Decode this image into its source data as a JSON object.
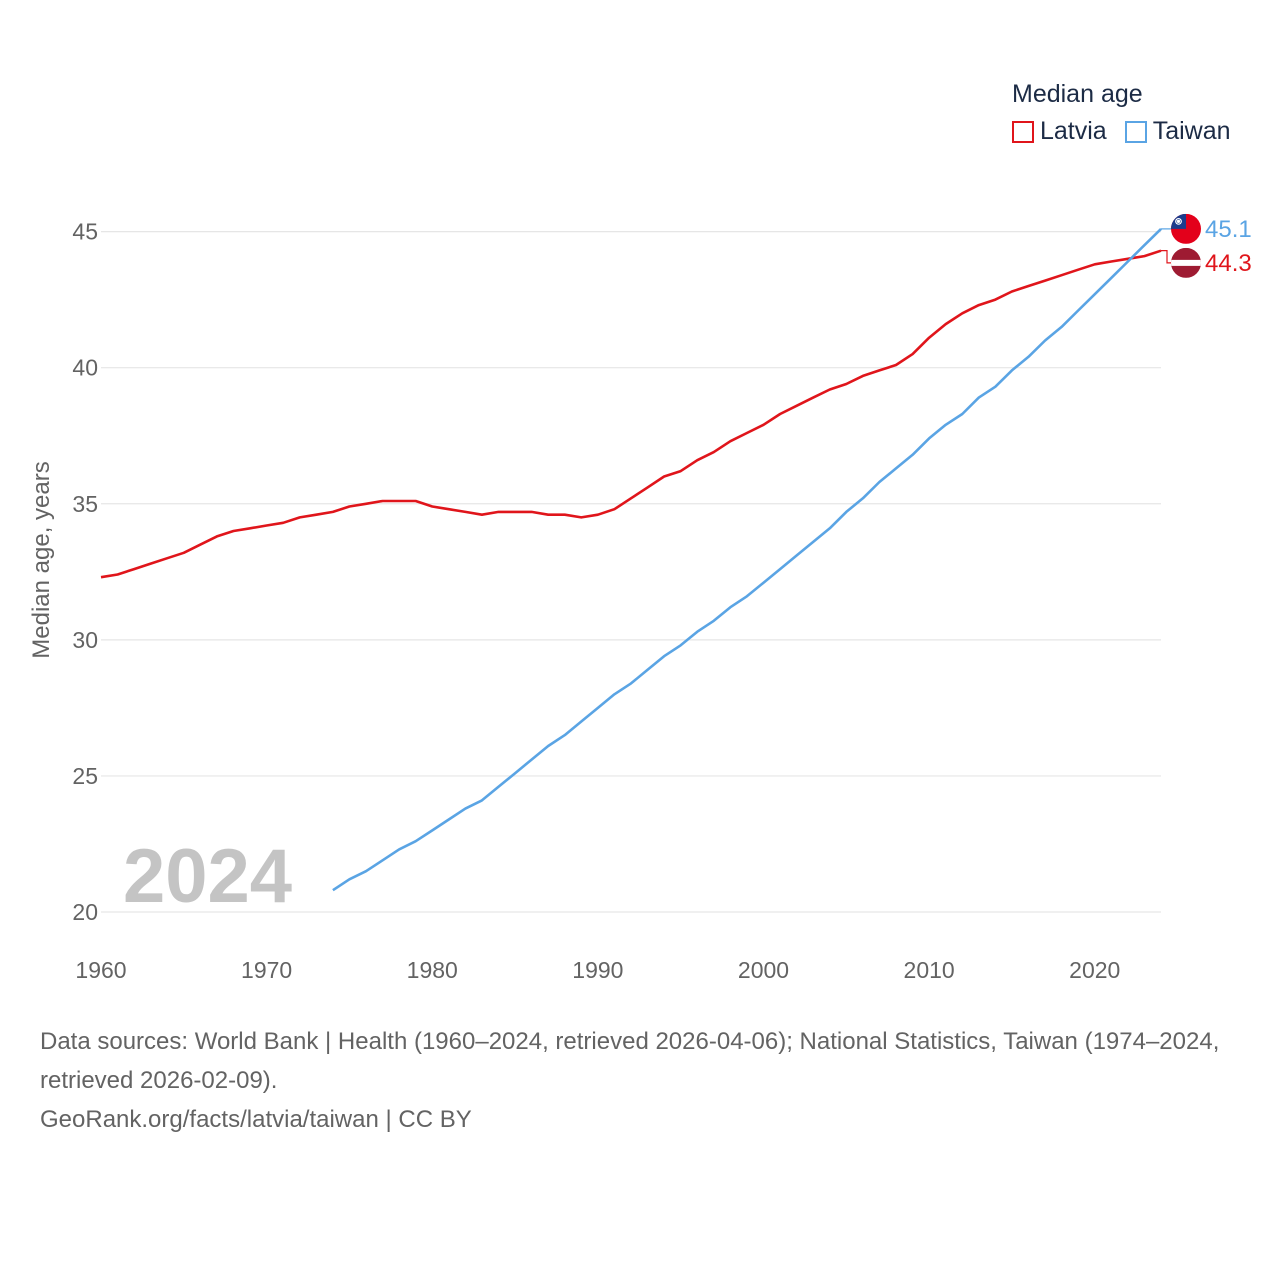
{
  "chart_data": {
    "type": "line",
    "title": "Median age",
    "ylabel": "Median age, years",
    "xlabel": "",
    "year_label": "2024",
    "xlim": [
      1960,
      2024
    ],
    "ylim": [
      20,
      45.5
    ],
    "x_ticks": [
      1960,
      1970,
      1980,
      1990,
      2000,
      2010,
      2020
    ],
    "y_ticks": [
      20,
      25,
      30,
      35,
      40,
      45
    ],
    "grid": true,
    "legend_position": "top-right",
    "series": [
      {
        "name": "Latvia",
        "color": "#e0151b",
        "end_label": "44.3",
        "x": [
          1960,
          1961,
          1962,
          1963,
          1964,
          1965,
          1966,
          1967,
          1968,
          1969,
          1970,
          1971,
          1972,
          1973,
          1974,
          1975,
          1976,
          1977,
          1978,
          1979,
          1980,
          1981,
          1982,
          1983,
          1984,
          1985,
          1986,
          1987,
          1988,
          1989,
          1990,
          1991,
          1992,
          1993,
          1994,
          1995,
          1996,
          1997,
          1998,
          1999,
          2000,
          2001,
          2002,
          2003,
          2004,
          2005,
          2006,
          2007,
          2008,
          2009,
          2010,
          2011,
          2012,
          2013,
          2014,
          2015,
          2016,
          2017,
          2018,
          2019,
          2020,
          2021,
          2022,
          2023,
          2024
        ],
        "values": [
          32.3,
          32.4,
          32.6,
          32.8,
          33.0,
          33.2,
          33.5,
          33.8,
          34.0,
          34.1,
          34.2,
          34.3,
          34.5,
          34.6,
          34.7,
          34.9,
          35.0,
          35.1,
          35.1,
          35.1,
          34.9,
          34.8,
          34.7,
          34.6,
          34.7,
          34.7,
          34.7,
          34.6,
          34.6,
          34.5,
          34.6,
          34.8,
          35.2,
          35.6,
          36.0,
          36.2,
          36.6,
          36.9,
          37.3,
          37.6,
          37.9,
          38.3,
          38.6,
          38.9,
          39.2,
          39.4,
          39.7,
          39.9,
          40.1,
          40.5,
          41.1,
          41.6,
          42.0,
          42.3,
          42.5,
          42.8,
          43.0,
          43.2,
          43.4,
          43.6,
          43.8,
          43.9,
          44.0,
          44.1,
          44.3
        ]
      },
      {
        "name": "Taiwan",
        "color": "#5aa4e4",
        "end_label": "45.1",
        "x": [
          1974,
          1975,
          1976,
          1977,
          1978,
          1979,
          1980,
          1981,
          1982,
          1983,
          1984,
          1985,
          1986,
          1987,
          1988,
          1989,
          1990,
          1991,
          1992,
          1993,
          1994,
          1995,
          1996,
          1997,
          1998,
          1999,
          2000,
          2001,
          2002,
          2003,
          2004,
          2005,
          2006,
          2007,
          2008,
          2009,
          2010,
          2011,
          2012,
          2013,
          2014,
          2015,
          2016,
          2017,
          2018,
          2019,
          2020,
          2021,
          2022,
          2023,
          2024
        ],
        "values": [
          20.8,
          21.2,
          21.5,
          21.9,
          22.3,
          22.6,
          23.0,
          23.4,
          23.8,
          24.1,
          24.6,
          25.1,
          25.6,
          26.1,
          26.5,
          27.0,
          27.5,
          28.0,
          28.4,
          28.9,
          29.4,
          29.8,
          30.3,
          30.7,
          31.2,
          31.6,
          32.1,
          32.6,
          33.1,
          33.6,
          34.1,
          34.7,
          35.2,
          35.8,
          36.3,
          36.8,
          37.4,
          37.9,
          38.3,
          38.9,
          39.3,
          39.9,
          40.4,
          41.0,
          41.5,
          42.1,
          42.7,
          43.3,
          43.9,
          44.5,
          45.1
        ]
      }
    ]
  },
  "legend": {
    "title": "Median age",
    "items": [
      "Latvia",
      "Taiwan"
    ]
  },
  "source": {
    "line1": "Data sources: World Bank | Health (1960–2024, retrieved 2026-04-06); National Statistics, Taiwan (1974–2024, retrieved 2026-02-09).",
    "line2": "GeoRank.org/facts/latvia/taiwan | CC BY"
  }
}
